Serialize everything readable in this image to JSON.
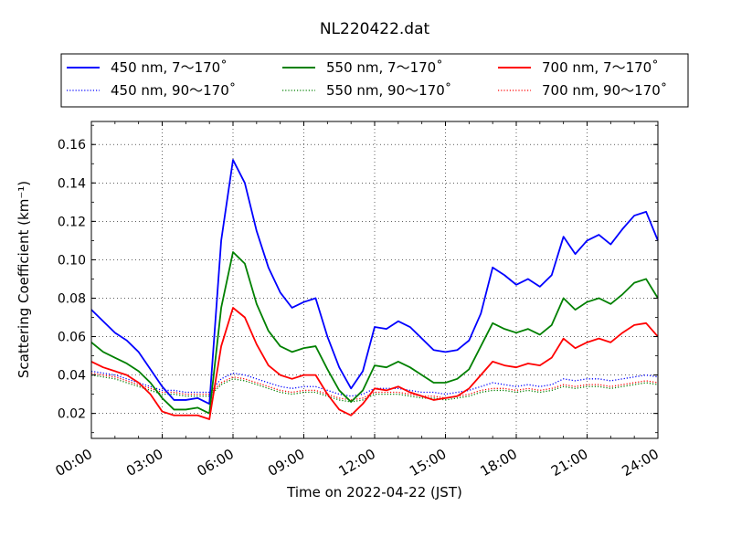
{
  "chart_data": {
    "type": "line",
    "title": "NL220422.dat",
    "xlabel": "Time on 2022-04-22 (JST)",
    "ylabel": "Scattering Coefficient (km⁻¹)",
    "x_ticks": [
      "00:00",
      "03:00",
      "06:00",
      "09:00",
      "12:00",
      "15:00",
      "18:00",
      "21:00",
      "24:00"
    ],
    "y_ticks": [
      "0.02",
      "0.04",
      "0.06",
      "0.08",
      "0.10",
      "0.12",
      "0.14",
      "0.16"
    ],
    "xlim_hours": [
      0,
      24
    ],
    "ylim": [
      0.007,
      0.172
    ],
    "grid": true,
    "legend_position": "top, above plot",
    "x_hours": [
      0,
      0.5,
      1,
      1.5,
      2,
      2.5,
      3,
      3.5,
      4,
      4.5,
      5,
      5.5,
      6,
      6.5,
      7,
      7.5,
      8,
      8.5,
      9,
      9.5,
      10,
      10.5,
      11,
      11.5,
      12,
      12.5,
      13,
      13.5,
      14,
      14.5,
      15,
      15.5,
      16,
      16.5,
      17,
      17.5,
      18,
      18.5,
      19,
      19.5,
      20,
      20.5,
      21,
      21.5,
      22,
      22.5,
      23,
      23.5,
      24
    ],
    "series": [
      {
        "name": "450 nm, 7～170˚",
        "color": "#0000ff",
        "style": "solid",
        "values": [
          0.074,
          0.068,
          0.062,
          0.058,
          0.052,
          0.043,
          0.034,
          0.027,
          0.027,
          0.028,
          0.025,
          0.11,
          0.152,
          0.14,
          0.115,
          0.096,
          0.083,
          0.075,
          0.078,
          0.08,
          0.06,
          0.044,
          0.033,
          0.042,
          0.065,
          0.064,
          0.068,
          0.065,
          0.059,
          0.053,
          0.052,
          0.053,
          0.058,
          0.072,
          0.096,
          0.092,
          0.087,
          0.09,
          0.086,
          0.092,
          0.112,
          0.103,
          0.11,
          0.113,
          0.108,
          0.116,
          0.123,
          0.125,
          0.11
        ]
      },
      {
        "name": "550 nm, 7～170˚",
        "color": "#008000",
        "style": "solid",
        "values": [
          0.057,
          0.052,
          0.049,
          0.046,
          0.042,
          0.036,
          0.028,
          0.022,
          0.022,
          0.023,
          0.02,
          0.075,
          0.104,
          0.098,
          0.077,
          0.063,
          0.055,
          0.052,
          0.054,
          0.055,
          0.043,
          0.032,
          0.026,
          0.032,
          0.045,
          0.044,
          0.047,
          0.044,
          0.04,
          0.036,
          0.036,
          0.038,
          0.043,
          0.055,
          0.067,
          0.064,
          0.062,
          0.064,
          0.061,
          0.066,
          0.08,
          0.074,
          0.078,
          0.08,
          0.077,
          0.082,
          0.088,
          0.09,
          0.08
        ]
      },
      {
        "name": "700 nm, 7～170˚",
        "color": "#ff0000",
        "style": "solid",
        "values": [
          0.047,
          0.044,
          0.042,
          0.04,
          0.036,
          0.03,
          0.021,
          0.019,
          0.019,
          0.019,
          0.017,
          0.055,
          0.075,
          0.07,
          0.056,
          0.045,
          0.04,
          0.038,
          0.04,
          0.04,
          0.03,
          0.022,
          0.019,
          0.025,
          0.033,
          0.032,
          0.034,
          0.031,
          0.029,
          0.027,
          0.028,
          0.029,
          0.033,
          0.04,
          0.047,
          0.045,
          0.044,
          0.046,
          0.045,
          0.049,
          0.059,
          0.054,
          0.057,
          0.059,
          0.057,
          0.062,
          0.066,
          0.067,
          0.06
        ]
      },
      {
        "name": "450 nm, 90～170˚",
        "color": "#0000ff",
        "style": "dotted",
        "values": [
          0.042,
          0.041,
          0.04,
          0.038,
          0.036,
          0.034,
          0.032,
          0.032,
          0.031,
          0.031,
          0.031,
          0.038,
          0.041,
          0.04,
          0.038,
          0.036,
          0.034,
          0.033,
          0.034,
          0.034,
          0.032,
          0.03,
          0.029,
          0.03,
          0.033,
          0.033,
          0.033,
          0.032,
          0.031,
          0.031,
          0.03,
          0.031,
          0.032,
          0.034,
          0.036,
          0.035,
          0.034,
          0.035,
          0.034,
          0.035,
          0.038,
          0.037,
          0.038,
          0.038,
          0.037,
          0.038,
          0.039,
          0.04,
          0.039
        ]
      },
      {
        "name": "550 nm, 90～170˚",
        "color": "#008000",
        "style": "dotted",
        "values": [
          0.04,
          0.039,
          0.038,
          0.036,
          0.034,
          0.032,
          0.03,
          0.03,
          0.029,
          0.029,
          0.029,
          0.035,
          0.038,
          0.037,
          0.035,
          0.033,
          0.031,
          0.03,
          0.031,
          0.031,
          0.029,
          0.027,
          0.026,
          0.027,
          0.03,
          0.03,
          0.03,
          0.029,
          0.028,
          0.028,
          0.027,
          0.028,
          0.029,
          0.031,
          0.032,
          0.032,
          0.031,
          0.032,
          0.031,
          0.032,
          0.034,
          0.033,
          0.034,
          0.034,
          0.033,
          0.034,
          0.035,
          0.036,
          0.035
        ]
      },
      {
        "name": "700 nm, 90～170˚",
        "color": "#ff0000",
        "style": "dotted",
        "values": [
          0.041,
          0.04,
          0.039,
          0.037,
          0.035,
          0.033,
          0.031,
          0.031,
          0.03,
          0.03,
          0.03,
          0.036,
          0.039,
          0.038,
          0.036,
          0.034,
          0.032,
          0.031,
          0.032,
          0.032,
          0.03,
          0.028,
          0.027,
          0.028,
          0.031,
          0.031,
          0.031,
          0.03,
          0.029,
          0.029,
          0.028,
          0.029,
          0.03,
          0.032,
          0.033,
          0.033,
          0.032,
          0.033,
          0.032,
          0.033,
          0.035,
          0.034,
          0.035,
          0.035,
          0.034,
          0.035,
          0.036,
          0.037,
          0.036
        ]
      }
    ]
  }
}
